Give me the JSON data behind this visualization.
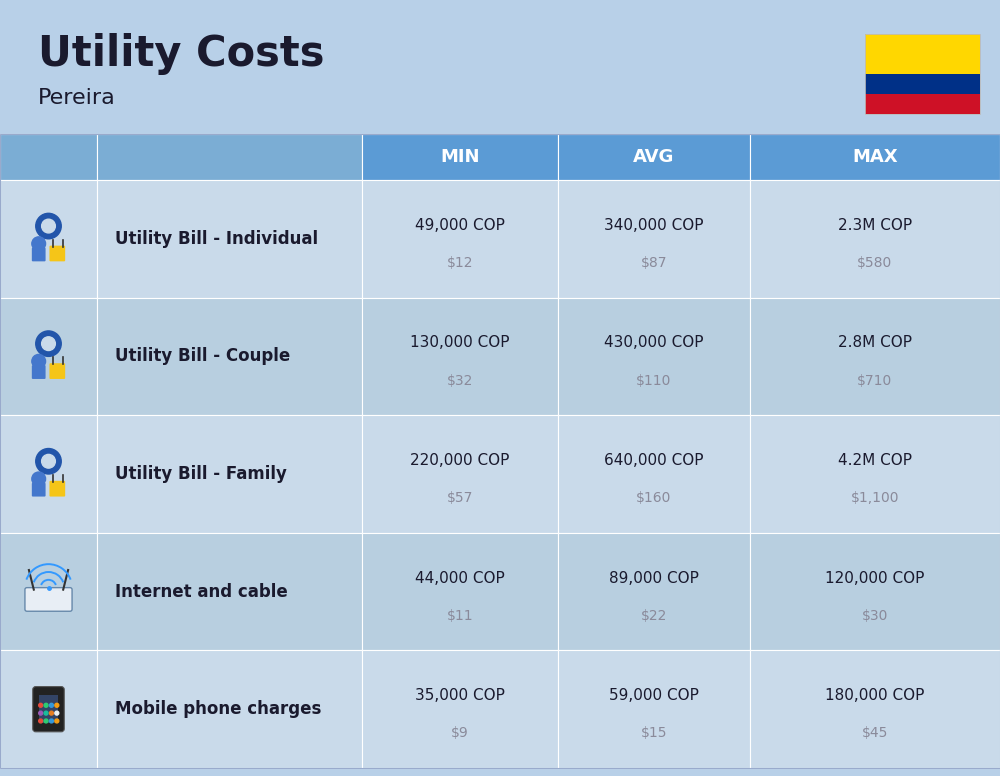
{
  "title": "Utility Costs",
  "subtitle": "Pereira",
  "background_color": "#b8d0e8",
  "header_color": "#5b9bd5",
  "header_color_light": "#7badd4",
  "row_color_light": "#c9daea",
  "row_color_dark": "#b8cfe0",
  "header_text_color": "#ffffff",
  "main_text_color": "#1a1a2e",
  "sub_text_color": "#8a8a9a",
  "col_headers": [
    "MIN",
    "AVG",
    "MAX"
  ],
  "flag_colors": [
    "#FFD700",
    "#003087",
    "#CE1126"
  ],
  "rows": [
    {
      "label": "Utility Bill - Individual",
      "min_cop": "49,000 COP",
      "min_usd": "$12",
      "avg_cop": "340,000 COP",
      "avg_usd": "$87",
      "max_cop": "2.3M COP",
      "max_usd": "$580"
    },
    {
      "label": "Utility Bill - Couple",
      "min_cop": "130,000 COP",
      "min_usd": "$32",
      "avg_cop": "430,000 COP",
      "avg_usd": "$110",
      "max_cop": "2.8M COP",
      "max_usd": "$710"
    },
    {
      "label": "Utility Bill - Family",
      "min_cop": "220,000 COP",
      "min_usd": "$57",
      "avg_cop": "640,000 COP",
      "avg_usd": "$160",
      "max_cop": "4.2M COP",
      "max_usd": "$1,100"
    },
    {
      "label": "Internet and cable",
      "min_cop": "44,000 COP",
      "min_usd": "$11",
      "avg_cop": "89,000 COP",
      "avg_usd": "$22",
      "max_cop": "120,000 COP",
      "max_usd": "$30"
    },
    {
      "label": "Mobile phone charges",
      "min_cop": "35,000 COP",
      "min_usd": "$9",
      "avg_cop": "59,000 COP",
      "avg_usd": "$15",
      "max_cop": "180,000 COP",
      "max_usd": "$45"
    }
  ]
}
